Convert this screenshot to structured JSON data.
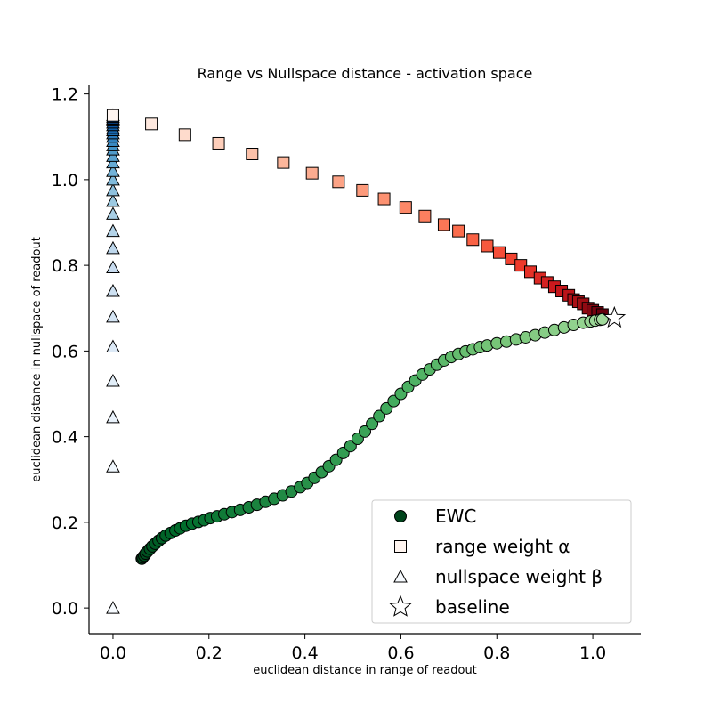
{
  "chart_data": {
    "type": "scatter",
    "title": "Range vs Nullspace distance - activation space",
    "xlabel": "euclidean distance in range of readout",
    "ylabel": "euclidean distance in nullspace of readout",
    "xlim": [
      -0.05,
      1.1
    ],
    "ylim": [
      -0.06,
      1.22
    ],
    "xticks": [
      "0.0",
      "0.2",
      "0.4",
      "0.6",
      "0.8",
      "1.0"
    ],
    "yticks": [
      "0.0",
      "0.2",
      "0.4",
      "0.6",
      "0.8",
      "1.0",
      "1.2"
    ],
    "grid": false,
    "legend_position": "lower-right",
    "legend": [
      "EWC",
      "range weight α",
      "nullspace weight β",
      "baseline"
    ],
    "series": [
      {
        "name": "EWC",
        "marker": "circle",
        "colormap": "Greens",
        "x": [
          0.06,
          0.062,
          0.065,
          0.068,
          0.072,
          0.077,
          0.082,
          0.088,
          0.095,
          0.102,
          0.11,
          0.12,
          0.13,
          0.14,
          0.152,
          0.165,
          0.178,
          0.19,
          0.203,
          0.217,
          0.232,
          0.248,
          0.265,
          0.283,
          0.3,
          0.318,
          0.336,
          0.354,
          0.372,
          0.39,
          0.405,
          0.42,
          0.435,
          0.45,
          0.465,
          0.48,
          0.495,
          0.51,
          0.525,
          0.54,
          0.555,
          0.57,
          0.585,
          0.6,
          0.615,
          0.63,
          0.645,
          0.66,
          0.675,
          0.69,
          0.705,
          0.72,
          0.735,
          0.75,
          0.765,
          0.78,
          0.8,
          0.82,
          0.84,
          0.86,
          0.88,
          0.9,
          0.92,
          0.94,
          0.96,
          0.98,
          0.995,
          1.005,
          1.015,
          1.02
        ],
        "y": [
          0.115,
          0.118,
          0.122,
          0.127,
          0.132,
          0.138,
          0.144,
          0.15,
          0.157,
          0.163,
          0.169,
          0.175,
          0.181,
          0.186,
          0.192,
          0.197,
          0.201,
          0.205,
          0.21,
          0.214,
          0.219,
          0.224,
          0.229,
          0.235,
          0.241,
          0.248,
          0.255,
          0.263,
          0.272,
          0.282,
          0.292,
          0.304,
          0.317,
          0.331,
          0.346,
          0.362,
          0.378,
          0.395,
          0.412,
          0.43,
          0.448,
          0.466,
          0.483,
          0.5,
          0.516,
          0.531,
          0.545,
          0.557,
          0.568,
          0.578,
          0.586,
          0.593,
          0.599,
          0.604,
          0.609,
          0.613,
          0.618,
          0.622,
          0.627,
          0.632,
          0.637,
          0.643,
          0.649,
          0.655,
          0.661,
          0.666,
          0.669,
          0.671,
          0.673,
          0.674
        ]
      },
      {
        "name": "range weight α",
        "marker": "square",
        "colormap": "Reds",
        "x": [
          0.0,
          0.08,
          0.15,
          0.22,
          0.29,
          0.355,
          0.415,
          0.47,
          0.52,
          0.565,
          0.61,
          0.65,
          0.69,
          0.72,
          0.75,
          0.78,
          0.805,
          0.83,
          0.85,
          0.87,
          0.89,
          0.905,
          0.92,
          0.935,
          0.95,
          0.96,
          0.97,
          0.98,
          0.99,
          1.0,
          1.01,
          1.02
        ],
        "y": [
          1.15,
          1.13,
          1.105,
          1.085,
          1.06,
          1.04,
          1.015,
          0.995,
          0.975,
          0.955,
          0.935,
          0.915,
          0.895,
          0.88,
          0.86,
          0.845,
          0.83,
          0.815,
          0.8,
          0.785,
          0.77,
          0.76,
          0.75,
          0.74,
          0.73,
          0.72,
          0.715,
          0.71,
          0.7,
          0.695,
          0.69,
          0.685
        ]
      },
      {
        "name": "nullspace weight β",
        "marker": "triangle",
        "colormap": "Blues",
        "x": [
          0,
          0,
          0,
          0,
          0,
          0,
          0,
          0,
          0,
          0,
          0,
          0,
          0,
          0,
          0,
          0,
          0,
          0,
          0,
          0,
          0,
          0,
          0,
          0,
          0,
          0,
          0,
          0,
          0,
          0
        ],
        "y": [
          0.0,
          0.33,
          0.445,
          0.53,
          0.61,
          0.68,
          0.74,
          0.795,
          0.84,
          0.88,
          0.92,
          0.95,
          0.975,
          1.0,
          1.02,
          1.04,
          1.055,
          1.07,
          1.08,
          1.09,
          1.1,
          1.108,
          1.115,
          1.12,
          1.127,
          1.133,
          1.138,
          1.142,
          1.146,
          1.15
        ]
      },
      {
        "name": "baseline",
        "marker": "star",
        "x": [
          1.045
        ],
        "y": [
          0.677
        ]
      }
    ]
  }
}
